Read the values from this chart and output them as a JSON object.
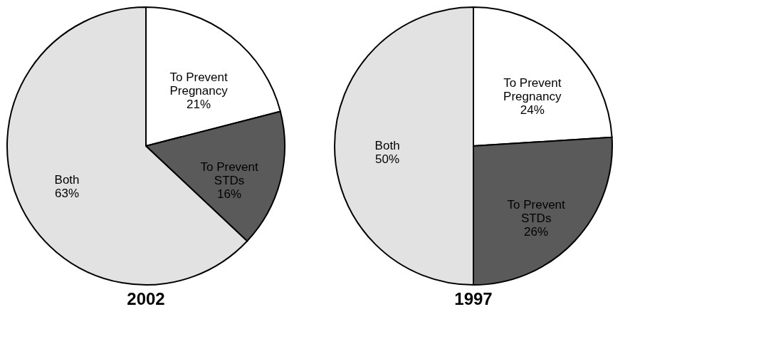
{
  "chart_data": [
    {
      "type": "pie",
      "title": "2002",
      "categories": [
        "To Prevent Pregnancy",
        "To Prevent STDs",
        "Both"
      ],
      "values": [
        21,
        16,
        63
      ],
      "value_labels": [
        "21%",
        "16%",
        "63%"
      ],
      "colors": [
        "#ffffff",
        "#5a5a5a",
        "#e2e2e2"
      ],
      "legend": false
    },
    {
      "type": "pie",
      "title": "1997",
      "categories": [
        "To Prevent Pregnancy",
        "To Prevent STDs",
        "Both"
      ],
      "values": [
        24,
        26,
        50
      ],
      "value_labels": [
        "24%",
        "26%",
        "50%"
      ],
      "colors": [
        "#ffffff",
        "#5a5a5a",
        "#e2e2e2"
      ],
      "legend": false
    }
  ]
}
